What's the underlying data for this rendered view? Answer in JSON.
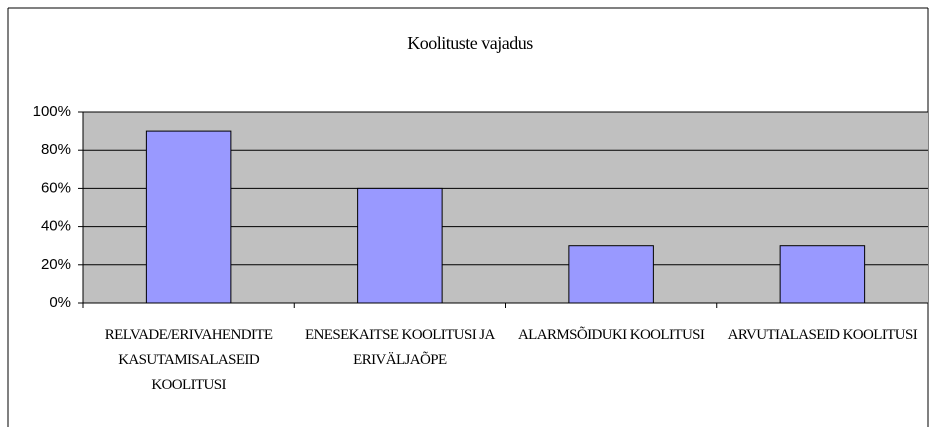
{
  "chart_data": {
    "type": "bar",
    "title": "Koolituste vajadus",
    "categories": [
      "RELVADE/ERIVAHENDITE KASUTAMISALASEID KOOLITUSI",
      "ENESEKAITSE KOOLITUSI JA ERIVÄLJAÕPE",
      "ALARMSÕIDUKI KOOLITUSI",
      "ARVUTIALASEID KOOLITUSI"
    ],
    "values": [
      90,
      60,
      30,
      30
    ],
    "color": "#9999ff",
    "ylim": [
      0,
      100
    ],
    "yticks": [
      {
        "value": 0,
        "label": "0%"
      },
      {
        "value": 20,
        "label": "20%"
      },
      {
        "value": 40,
        "label": "40%"
      },
      {
        "value": 60,
        "label": "60%"
      },
      {
        "value": 80,
        "label": "80%"
      },
      {
        "value": 100,
        "label": "100%"
      }
    ],
    "grid": true
  }
}
